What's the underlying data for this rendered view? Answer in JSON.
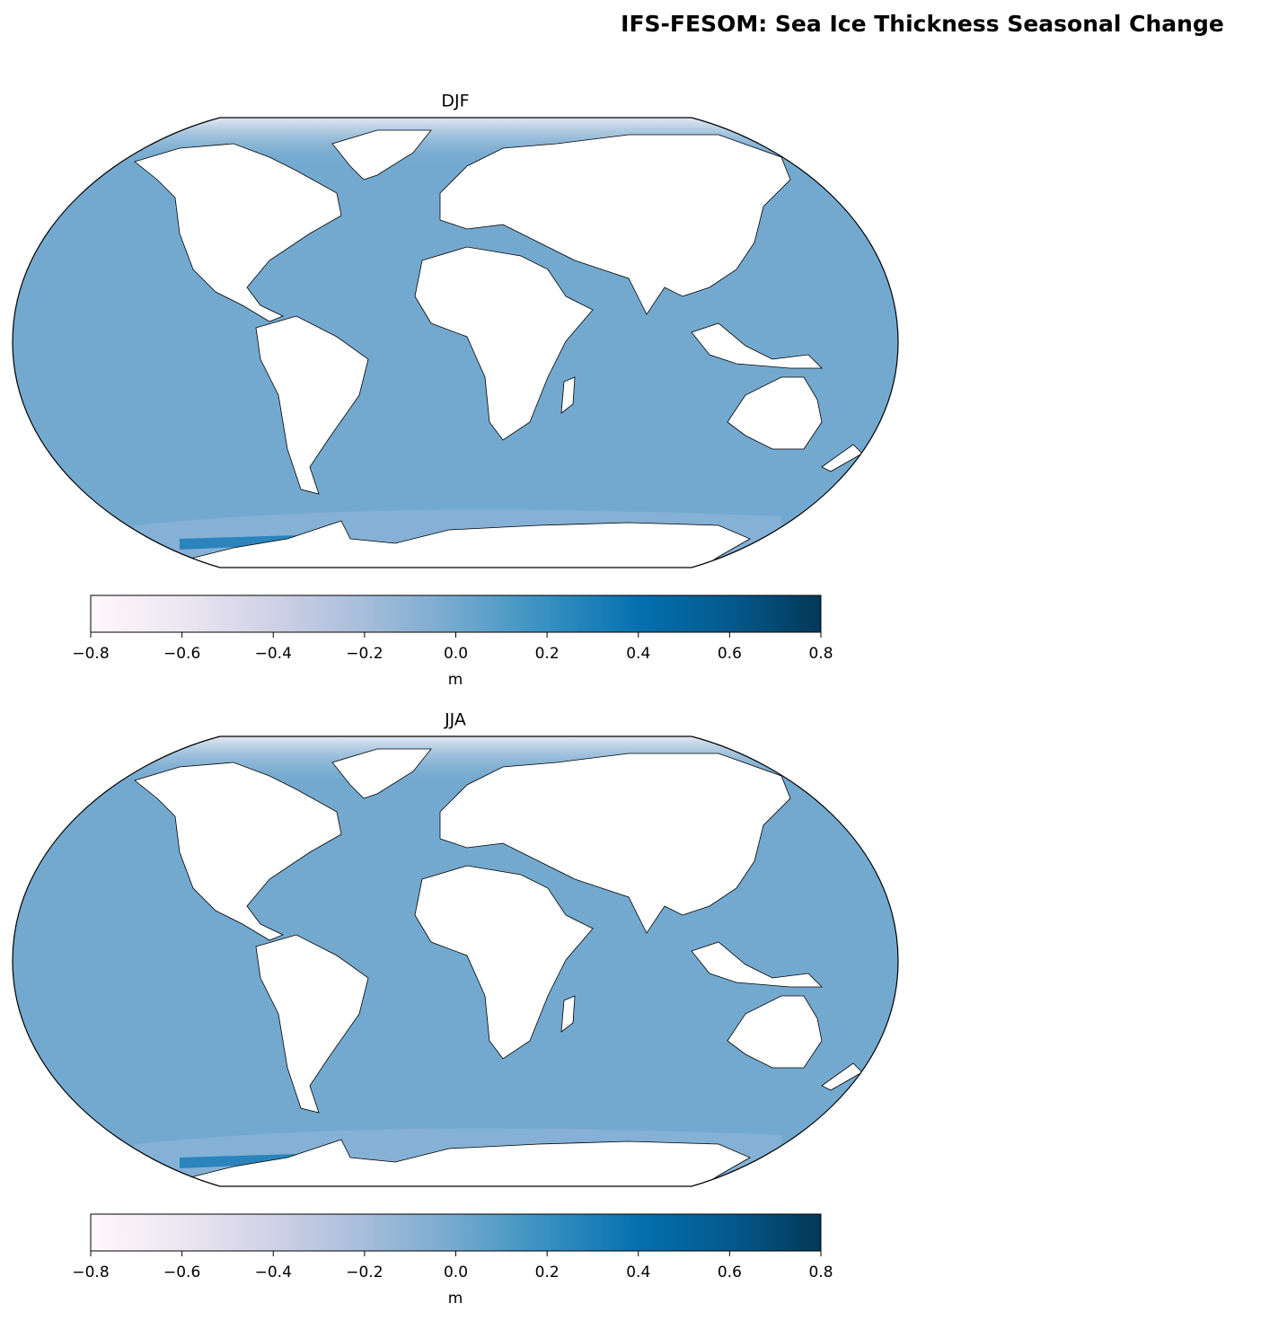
{
  "title": "IFS-FESOM: Sea Ice Thickness Seasonal Change",
  "colormap": [
    "#fff7fb",
    "#ece7f2",
    "#d0d1e6",
    "#a6bddb",
    "#74a9cf",
    "#3690c0",
    "#0570b0",
    "#045a8d",
    "#023858"
  ],
  "panels": [
    {
      "title": "DJF",
      "colorbar": {
        "label": "m",
        "lim": [
          -0.8,
          0.8
        ],
        "ticks": [
          {
            "value": -0.8,
            "label": "−0.8"
          },
          {
            "value": -0.6,
            "label": "−0.6"
          },
          {
            "value": -0.4,
            "label": "−0.4"
          },
          {
            "value": -0.2,
            "label": "−0.2"
          },
          {
            "value": 0,
            "label": "0.0"
          },
          0.2,
          0.4,
          0.6,
          0.8
        ]
      }
    },
    {
      "title": "JJA",
      "colorbar": {
        "label": "m",
        "lim": [
          -0.8,
          0.8
        ],
        "ticks": [
          {
            "value": -0.8,
            "label": "−0.8"
          },
          {
            "value": -0.6,
            "label": "−0.6"
          },
          {
            "value": -0.4,
            "label": "−0.4"
          },
          {
            "value": -0.2,
            "label": "−0.2"
          },
          {
            "value": 0,
            "label": "0.0"
          },
          0.2,
          0.4,
          0.6,
          0.8
        ]
      }
    }
  ]
}
